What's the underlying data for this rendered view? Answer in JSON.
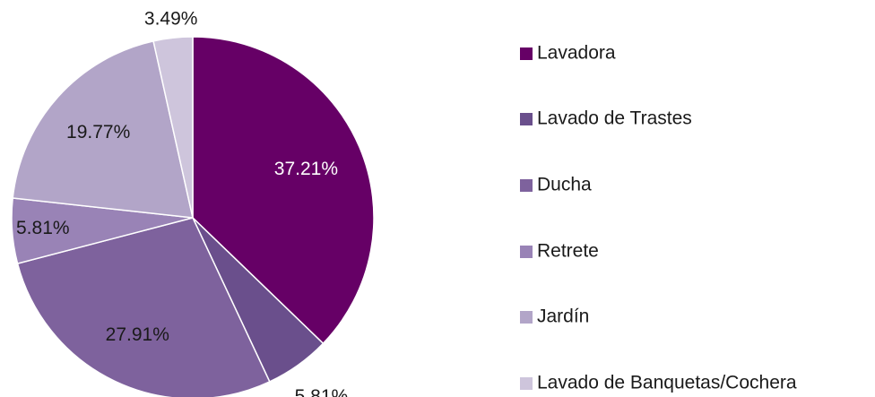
{
  "chart_data": {
    "type": "pie",
    "categories": [
      "Lavadora",
      "Lavado de Trastes",
      "Ducha",
      "Retrete",
      "Jardín",
      "Lavado de Banquetas/Cochera"
    ],
    "values": [
      37.21,
      5.81,
      27.91,
      5.81,
      19.77,
      3.49
    ],
    "value_labels": [
      "37.21%",
      "5.81%",
      "27.91%",
      "5.81%",
      "19.77%",
      "3.49%"
    ],
    "colors": [
      "#660066",
      "#6a4f8c",
      "#7e629d",
      "#9983b6",
      "#b2a5c8",
      "#cec5dc"
    ],
    "legend": "right"
  }
}
